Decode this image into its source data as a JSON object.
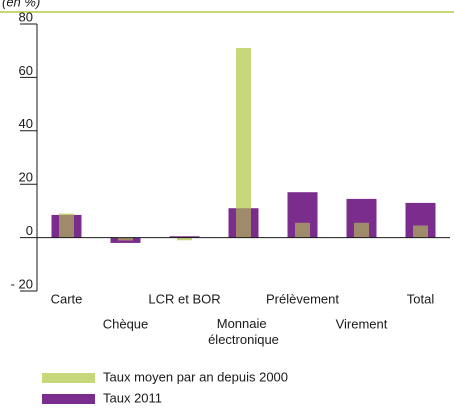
{
  "chart_data": {
    "type": "bar",
    "subtitle": "(en %)",
    "categories": [
      "Carte",
      "Chèque",
      "LCR et BOR",
      "Monnaie électronique",
      "Prélèvement",
      "Virement",
      "Total"
    ],
    "series": [
      {
        "name": "Taux moyen par an depuis 2000",
        "color": "#c6d87a",
        "values": [
          9,
          -1,
          -1,
          71,
          5.5,
          5.5,
          4.5
        ]
      },
      {
        "name": "Taux 2011",
        "color": "#7b2d8e",
        "values": [
          8.5,
          -2,
          0.5,
          11,
          17,
          14.5,
          13
        ]
      }
    ],
    "overlap_color": "#a08a6c",
    "ylim": [
      -20,
      80
    ],
    "yticks": [
      {
        "value": -20,
        "label": "- 20"
      },
      0,
      20,
      40,
      60,
      80
    ]
  }
}
